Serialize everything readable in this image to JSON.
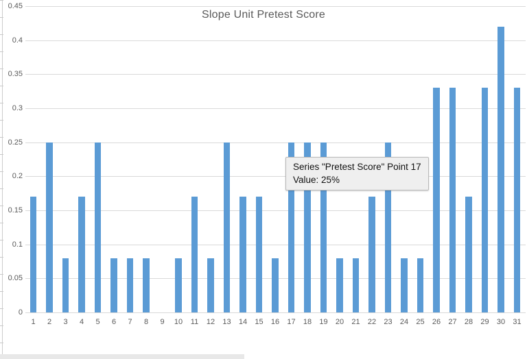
{
  "chart_data": {
    "type": "bar",
    "title": "Slope Unit Pretest Score",
    "series": [
      {
        "name": "Pretest Score",
        "values": [
          0.17,
          0.25,
          0.08,
          0.17,
          0.25,
          0.08,
          0.08,
          0.08,
          0,
          0.08,
          0.17,
          0.08,
          0.25,
          0.17,
          0.17,
          0.08,
          0.25,
          0.25,
          0.25,
          0.08,
          0.08,
          0.17,
          0.25,
          0.08,
          0.08,
          0.33,
          0.33,
          0.17,
          0.33,
          0.42,
          0.33
        ]
      }
    ],
    "categories": [
      "1",
      "2",
      "3",
      "4",
      "5",
      "6",
      "7",
      "8",
      "9",
      "10",
      "11",
      "12",
      "13",
      "14",
      "15",
      "16",
      "17",
      "18",
      "19",
      "20",
      "21",
      "22",
      "23",
      "24",
      "25",
      "26",
      "27",
      "28",
      "29",
      "30",
      "31"
    ],
    "xlabel": "",
    "ylabel": "",
    "ylim": [
      0,
      0.45
    ],
    "yticks": [
      "0",
      "0.05",
      "0.1",
      "0.15",
      "0.2",
      "0.25",
      "0.3",
      "0.35",
      "0.4",
      "0.45"
    ],
    "grid": true,
    "legend_position": "none",
    "colors": {
      "bar": "#5B9BD5",
      "gridline": "#d9d9d9",
      "axis_label": "#595959",
      "title": "#595959"
    }
  },
  "tooltip": {
    "line1": "Series \"Pretest Score\" Point 17",
    "line2": "Value: 25%"
  }
}
